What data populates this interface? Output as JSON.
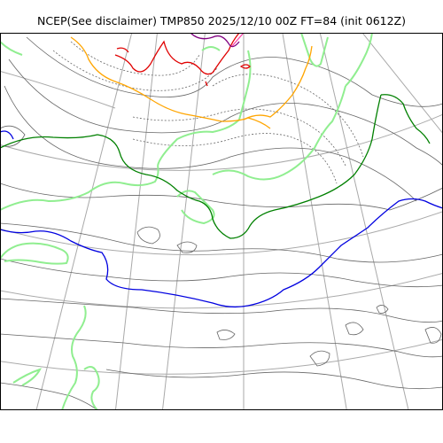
{
  "title": "NCEP(See disclaimer) TMP850 2025/12/10 00Z FT=84 (init 0612Z)",
  "colors": {
    "background": "#ffffff",
    "frame": "#000000",
    "graticule": "#a9a9a9",
    "geopotential_contours": "#666666",
    "coastline": "#90ee90",
    "isotherm_red": "#e00000",
    "isotherm_orange": "#ffa500",
    "isotherm_green": "#008000",
    "isotherm_blue": "#0000e0",
    "isotherm_purple": "#800080",
    "isotherm_pink": "#ff44aa"
  }
}
